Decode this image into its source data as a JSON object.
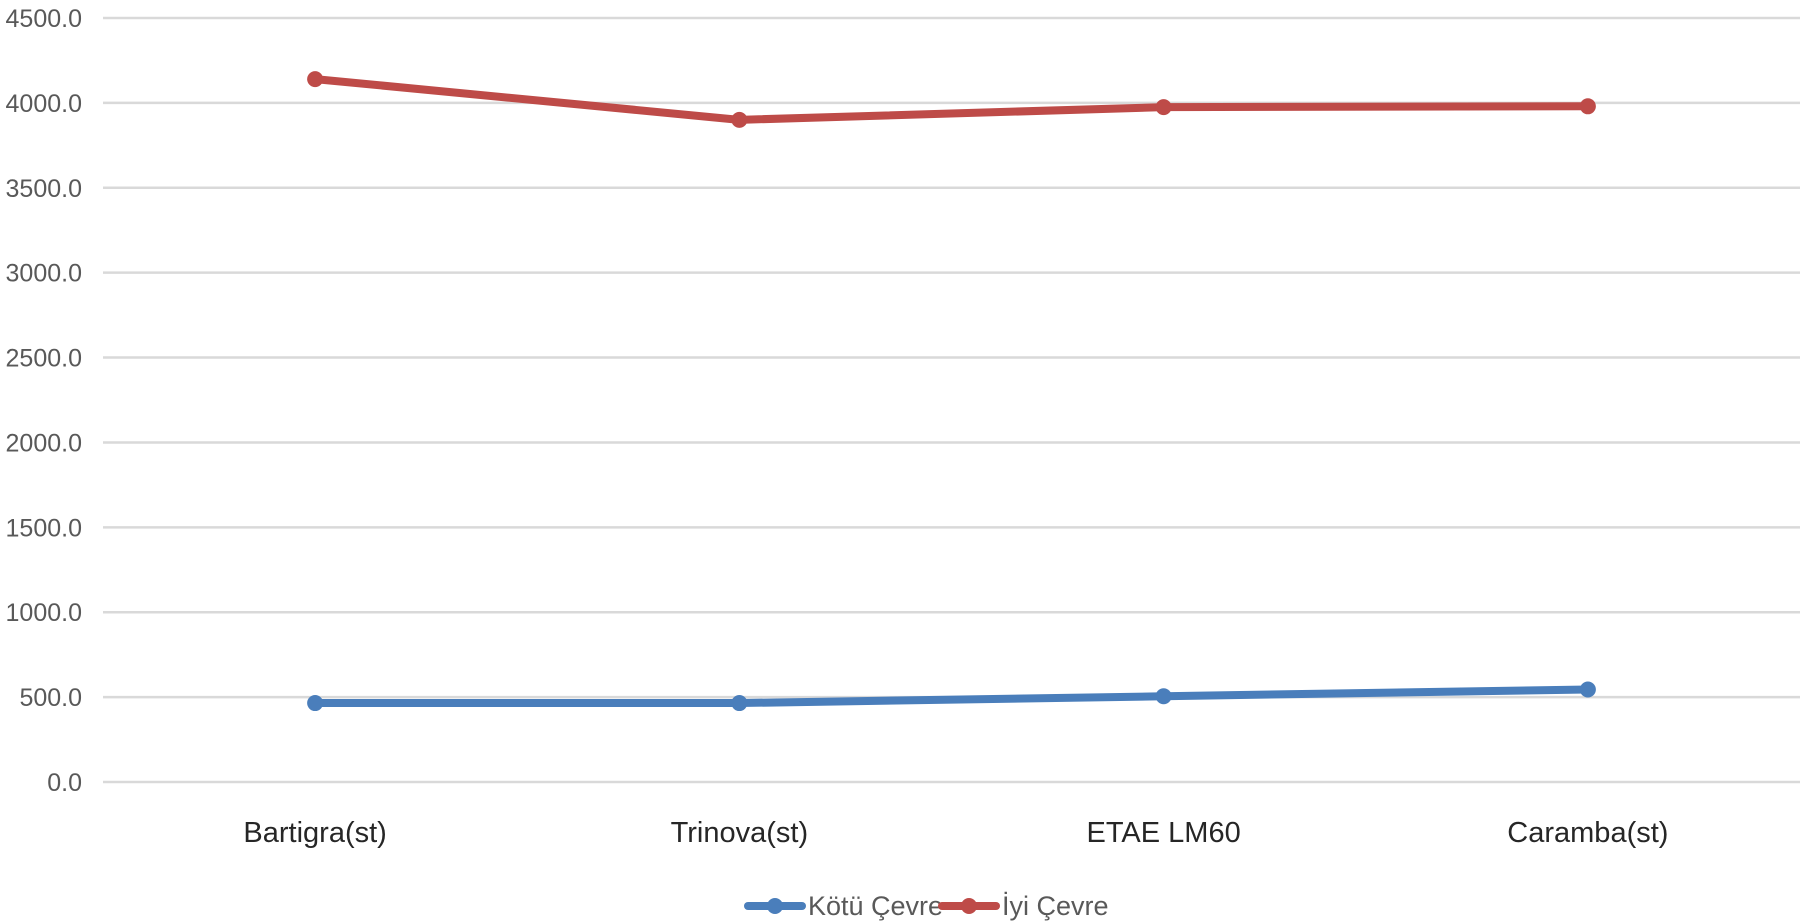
{
  "chart_data": {
    "type": "line",
    "title": "",
    "xlabel": "",
    "ylabel": "",
    "categories": [
      "Bartigra(st)",
      "Trinova(st)",
      "ETAE LM60",
      "Caramba(st)"
    ],
    "series": [
      {
        "name": "Kötü Çevre",
        "color": "#4a7ebb",
        "values": [
          465,
          465,
          505,
          545
        ]
      },
      {
        "name": "İyi Çevre",
        "color": "#be4b48",
        "values": [
          4140,
          3900,
          3975,
          3980
        ]
      }
    ],
    "ylim": [
      0,
      4500
    ],
    "yticks": [
      "0.0",
      "500.0",
      "1000.0",
      "1500.0",
      "2000.0",
      "2500.0",
      "3000.0",
      "3500.0",
      "4000.0",
      "4500.0"
    ],
    "grid": true,
    "legend_position": "bottom"
  }
}
